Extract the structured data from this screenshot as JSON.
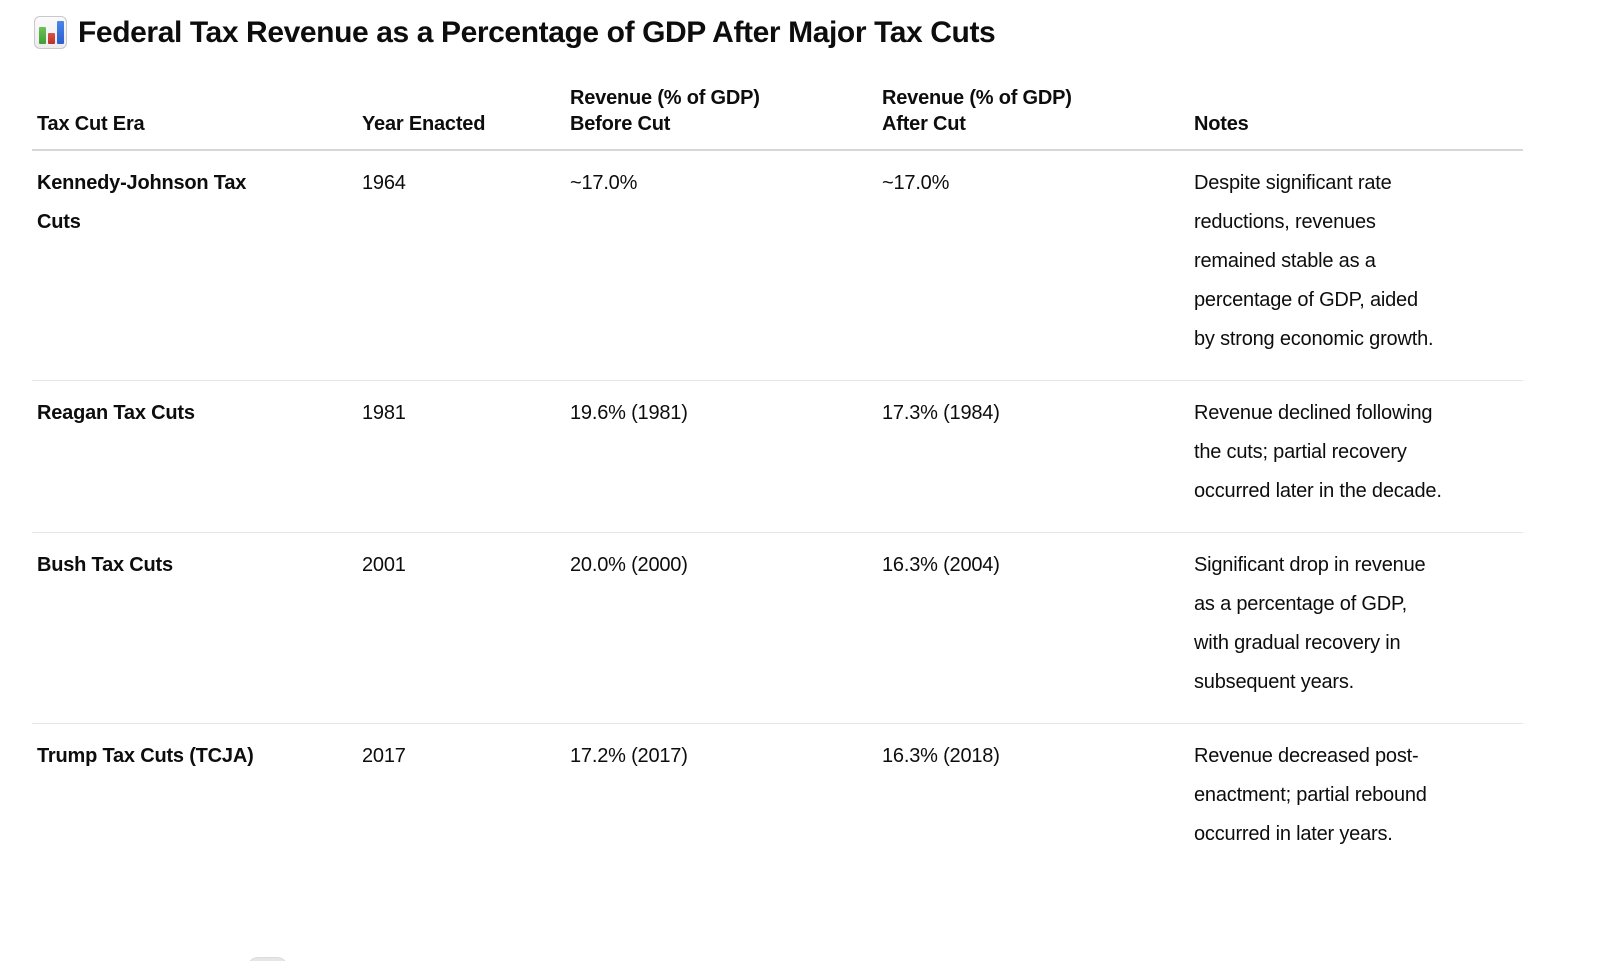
{
  "title": {
    "icon": "bar-chart-emoji",
    "text": "Federal Tax Revenue as a Percentage of GDP After Major Tax Cuts"
  },
  "table": {
    "headers": [
      {
        "label": "Tax Cut Era"
      },
      {
        "label": "Year Enacted"
      },
      {
        "label": "Revenue (% of GDP)\nBefore Cut"
      },
      {
        "label": "Revenue (% of GDP)\nAfter Cut"
      },
      {
        "label": "Notes"
      }
    ],
    "rows": [
      {
        "era": "Kennedy-Johnson Tax Cuts",
        "year": "1964",
        "before": "~17.0%",
        "after": "~17.0%",
        "notes": "Despite significant rate reductions, revenues remained stable as a percentage of GDP, aided by strong economic growth."
      },
      {
        "era": "Reagan Tax Cuts",
        "year": "1981",
        "before": "19.6% (1981)",
        "after": "17.3% (1984)",
        "notes": "Revenue declined following the cuts; partial recovery occurred later in the decade."
      },
      {
        "era": "Bush Tax Cuts",
        "year": "2001",
        "before": "20.0% (2000)",
        "after": "16.3% (2004)",
        "notes": "Significant drop in revenue as a percentage of GDP, with gradual recovery in subsequent years."
      },
      {
        "era": "Trump Tax Cuts (TCJA)",
        "year": "2017",
        "before": "17.2% (2017)",
        "after": "16.3% (2018)",
        "notes": "Revenue decreased post-enactment; partial rebound occurred in later years."
      }
    ]
  },
  "colors": {
    "text": "#0d0d0d",
    "header_divider": "#d7d7d7",
    "row_divider": "#e7e7e7",
    "emoji_green": "#4da63f",
    "emoji_red": "#c8382f",
    "emoji_blue": "#3b74dc",
    "background": "#ffffff"
  }
}
